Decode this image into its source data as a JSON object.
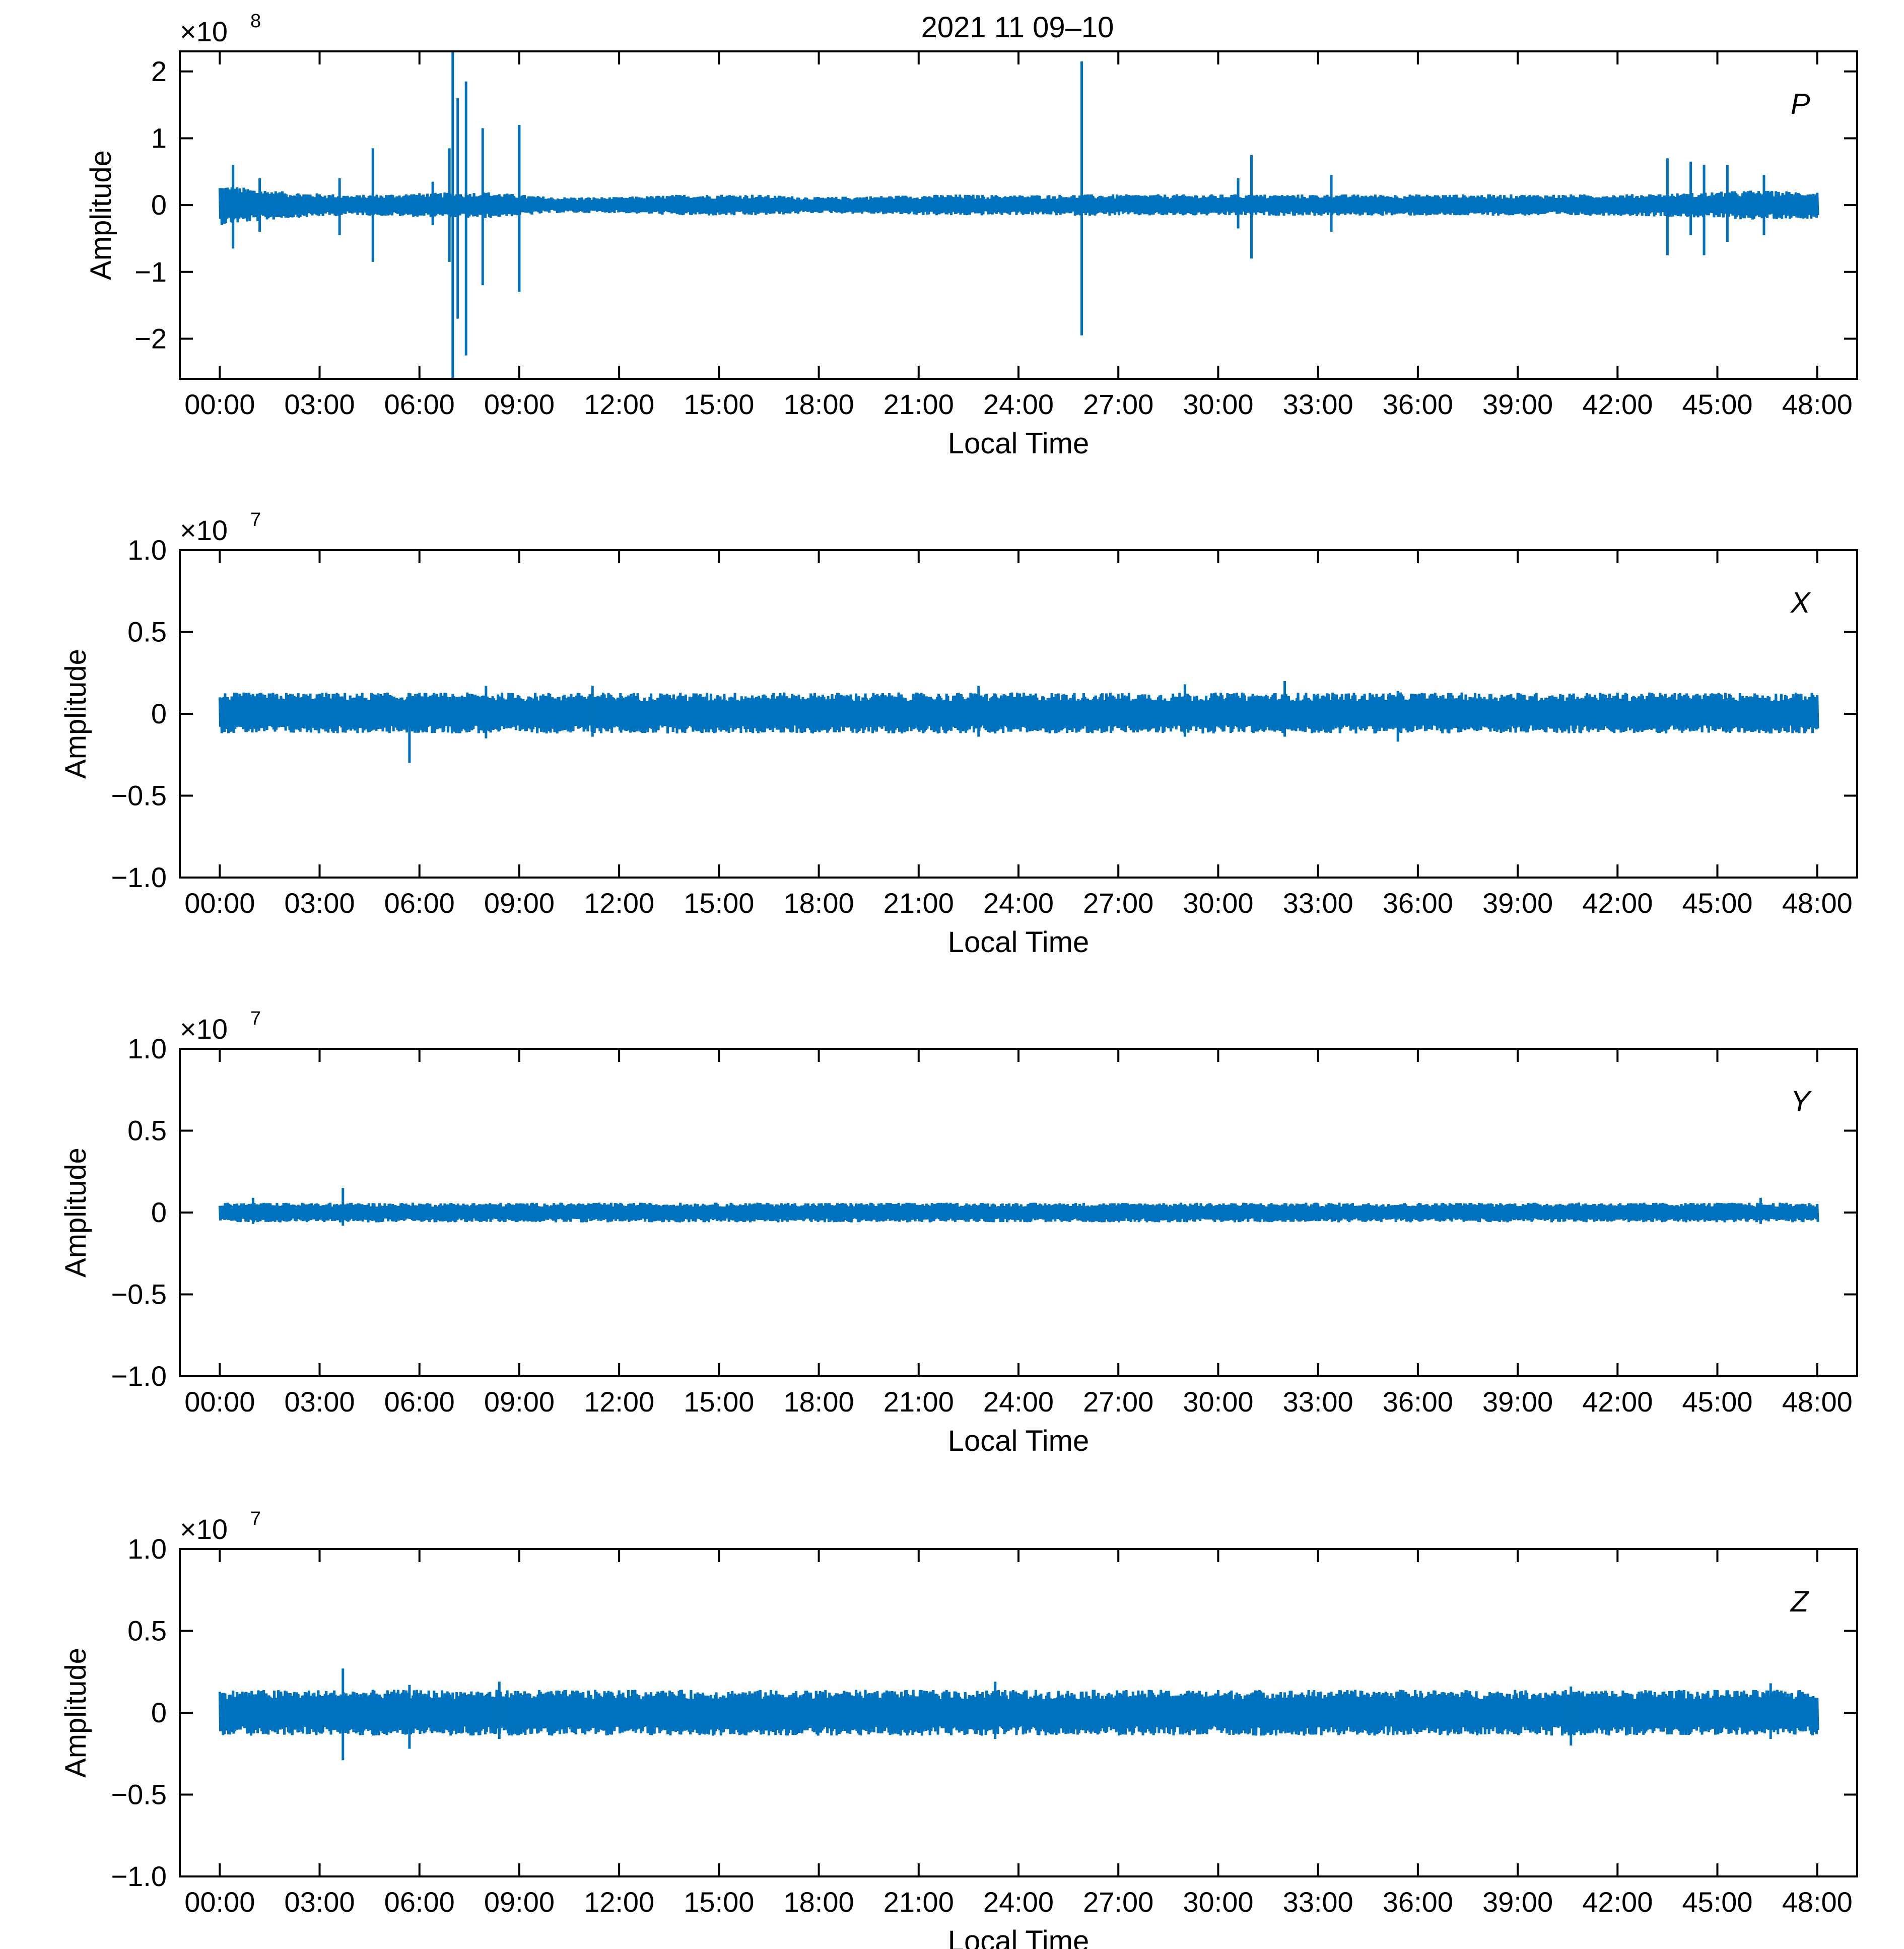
{
  "figure": {
    "title": "2021 11 09–10"
  },
  "chart_data": [
    {
      "type": "line",
      "panel_label": "P",
      "title": "",
      "xlabel": "Local Time",
      "ylabel": "Amplitude",
      "y_multiplier": "×10",
      "y_exponent": "8",
      "xlim": [
        -1.2,
        49.2
      ],
      "ylim": [
        -2.6,
        2.3
      ],
      "x_ticks": [
        "00:00",
        "03:00",
        "06:00",
        "09:00",
        "12:00",
        "15:00",
        "18:00",
        "21:00",
        "24:00",
        "27:00",
        "30:00",
        "33:00",
        "36:00",
        "39:00",
        "42:00",
        "45:00",
        "48:00"
      ],
      "y_ticks": [
        {
          "value": 2,
          "label": "2"
        },
        {
          "value": 1,
          "label": "1"
        },
        {
          "value": 0,
          "label": "0"
        },
        {
          "value": -1,
          "label": "−1"
        },
        {
          "value": -2,
          "label": "−2"
        }
      ],
      "grid": false,
      "series": [
        {
          "color": "#0072BD",
          "x_hours": [
            0,
            2,
            4,
            6,
            8,
            10,
            12,
            14,
            16,
            18,
            20,
            22,
            24,
            26,
            28,
            30,
            32,
            34,
            36,
            38,
            40,
            42,
            44,
            46,
            48
          ],
          "envelope_upper": [
            0.3,
            0.2,
            0.15,
            0.18,
            0.2,
            0.12,
            0.12,
            0.16,
            0.16,
            0.12,
            0.14,
            0.16,
            0.15,
            0.16,
            0.16,
            0.16,
            0.16,
            0.16,
            0.16,
            0.16,
            0.16,
            0.16,
            0.18,
            0.22,
            0.2
          ],
          "envelope_lower": [
            -0.3,
            -0.2,
            -0.15,
            -0.18,
            -0.2,
            -0.12,
            -0.12,
            -0.16,
            -0.16,
            -0.12,
            -0.14,
            -0.16,
            -0.15,
            -0.16,
            -0.16,
            -0.16,
            -0.16,
            -0.16,
            -0.16,
            -0.16,
            -0.16,
            -0.16,
            -0.18,
            -0.22,
            -0.2
          ],
          "spikes": [
            {
              "x": 0.4,
              "max": 0.6,
              "min": -0.65
            },
            {
              "x": 1.2,
              "max": 0.4,
              "min": -0.4
            },
            {
              "x": 3.6,
              "max": 0.4,
              "min": -0.45
            },
            {
              "x": 4.6,
              "max": 0.85,
              "min": -0.85
            },
            {
              "x": 6.4,
              "max": 0.35,
              "min": -0.3
            },
            {
              "x": 6.9,
              "max": 0.85,
              "min": -0.85
            },
            {
              "x": 7.0,
              "max": 2.3,
              "min": -2.6
            },
            {
              "x": 7.15,
              "max": 1.6,
              "min": -1.7
            },
            {
              "x": 7.4,
              "max": 1.85,
              "min": -2.25
            },
            {
              "x": 7.9,
              "max": 1.15,
              "min": -1.2
            },
            {
              "x": 9.0,
              "max": 1.2,
              "min": -1.3
            },
            {
              "x": 25.9,
              "max": 2.15,
              "min": -1.95
            },
            {
              "x": 30.6,
              "max": 0.4,
              "min": -0.35
            },
            {
              "x": 31.0,
              "max": 0.75,
              "min": -0.8
            },
            {
              "x": 33.4,
              "max": 0.45,
              "min": -0.4
            },
            {
              "x": 43.5,
              "max": 0.7,
              "min": -0.75
            },
            {
              "x": 44.2,
              "max": 0.65,
              "min": -0.45
            },
            {
              "x": 44.6,
              "max": 0.6,
              "min": -0.75
            },
            {
              "x": 45.3,
              "max": 0.6,
              "min": -0.55
            },
            {
              "x": 46.4,
              "max": 0.45,
              "min": -0.45
            }
          ]
        }
      ]
    },
    {
      "type": "line",
      "panel_label": "X",
      "title": "",
      "xlabel": "Local Time",
      "ylabel": "Amplitude",
      "y_multiplier": "×10",
      "y_exponent": "7",
      "xlim": [
        -1.2,
        49.2
      ],
      "ylim": [
        -1.0,
        1.0
      ],
      "x_ticks": [
        "00:00",
        "03:00",
        "06:00",
        "09:00",
        "12:00",
        "15:00",
        "18:00",
        "21:00",
        "24:00",
        "27:00",
        "30:00",
        "33:00",
        "36:00",
        "39:00",
        "42:00",
        "45:00",
        "48:00"
      ],
      "y_ticks": [
        {
          "value": 1.0,
          "label": "1.0"
        },
        {
          "value": 0.5,
          "label": "0.5"
        },
        {
          "value": 0,
          "label": "0"
        },
        {
          "value": -0.5,
          "label": "−0.5"
        },
        {
          "value": -1.0,
          "label": "−1.0"
        }
      ],
      "grid": false,
      "series": [
        {
          "color": "#0072BD",
          "x_hours": [
            0,
            4,
            8,
            12,
            16,
            20,
            24,
            28,
            32,
            36,
            40,
            44,
            48
          ],
          "envelope_upper": [
            0.13,
            0.13,
            0.13,
            0.13,
            0.13,
            0.13,
            0.13,
            0.13,
            0.13,
            0.13,
            0.13,
            0.13,
            0.13
          ],
          "envelope_lower": [
            -0.12,
            -0.12,
            -0.12,
            -0.12,
            -0.12,
            -0.12,
            -0.12,
            -0.12,
            -0.12,
            -0.12,
            -0.12,
            -0.12,
            -0.12
          ],
          "spikes": [
            {
              "x": 5.7,
              "max": 0.1,
              "min": -0.3
            },
            {
              "x": 8.0,
              "max": 0.17,
              "min": -0.15
            },
            {
              "x": 11.2,
              "max": 0.17,
              "min": -0.14
            },
            {
              "x": 22.8,
              "max": 0.17,
              "min": -0.14
            },
            {
              "x": 29.0,
              "max": 0.18,
              "min": -0.14
            },
            {
              "x": 32.0,
              "max": 0.2,
              "min": -0.14
            },
            {
              "x": 35.4,
              "max": 0.14,
              "min": -0.17
            }
          ]
        }
      ]
    },
    {
      "type": "line",
      "panel_label": "Y",
      "title": "",
      "xlabel": "Local Time",
      "ylabel": "Amplitude",
      "y_multiplier": "×10",
      "y_exponent": "7",
      "xlim": [
        -1.2,
        49.2
      ],
      "ylim": [
        -1.0,
        1.0
      ],
      "x_ticks": [
        "00:00",
        "03:00",
        "06:00",
        "09:00",
        "12:00",
        "15:00",
        "18:00",
        "21:00",
        "24:00",
        "27:00",
        "30:00",
        "33:00",
        "36:00",
        "39:00",
        "42:00",
        "45:00",
        "48:00"
      ],
      "y_ticks": [
        {
          "value": 1.0,
          "label": "1.0"
        },
        {
          "value": 0.5,
          "label": "0.5"
        },
        {
          "value": 0,
          "label": "0"
        },
        {
          "value": -0.5,
          "label": "−0.5"
        },
        {
          "value": -1.0,
          "label": "−1.0"
        }
      ],
      "grid": false,
      "series": [
        {
          "color": "#0072BD",
          "x_hours": [
            0,
            4,
            8,
            12,
            16,
            20,
            24,
            28,
            32,
            36,
            40,
            44,
            48
          ],
          "envelope_upper": [
            0.06,
            0.06,
            0.06,
            0.06,
            0.06,
            0.06,
            0.06,
            0.06,
            0.06,
            0.06,
            0.06,
            0.06,
            0.06
          ],
          "envelope_lower": [
            -0.06,
            -0.06,
            -0.06,
            -0.06,
            -0.06,
            -0.06,
            -0.06,
            -0.06,
            -0.06,
            -0.06,
            -0.06,
            -0.06,
            -0.06
          ],
          "spikes": [
            {
              "x": 3.7,
              "max": 0.15,
              "min": -0.08
            },
            {
              "x": 1.0,
              "max": 0.09,
              "min": -0.07
            },
            {
              "x": 46.3,
              "max": 0.09,
              "min": -0.07
            }
          ]
        }
      ]
    },
    {
      "type": "line",
      "panel_label": "Z",
      "title": "",
      "xlabel": "Local Time",
      "ylabel": "Amplitude",
      "y_multiplier": "×10",
      "y_exponent": "7",
      "xlim": [
        -1.2,
        49.2
      ],
      "ylim": [
        -1.0,
        1.0
      ],
      "x_ticks": [
        "00:00",
        "03:00",
        "06:00",
        "09:00",
        "12:00",
        "15:00",
        "18:00",
        "21:00",
        "24:00",
        "27:00",
        "30:00",
        "33:00",
        "36:00",
        "39:00",
        "42:00",
        "45:00",
        "48:00"
      ],
      "y_ticks": [
        {
          "value": 1.0,
          "label": "1.0"
        },
        {
          "value": 0.5,
          "label": "0.5"
        },
        {
          "value": 0,
          "label": "0"
        },
        {
          "value": -0.5,
          "label": "−0.5"
        },
        {
          "value": -1.0,
          "label": "−1.0"
        }
      ],
      "grid": false,
      "series": [
        {
          "color": "#0072BD",
          "x_hours": [
            0,
            4,
            8,
            12,
            16,
            20,
            24,
            28,
            32,
            36,
            40,
            44,
            48
          ],
          "envelope_upper": [
            0.14,
            0.14,
            0.14,
            0.14,
            0.14,
            0.14,
            0.14,
            0.14,
            0.14,
            0.14,
            0.14,
            0.14,
            0.14
          ],
          "envelope_lower": [
            -0.14,
            -0.14,
            -0.14,
            -0.14,
            -0.14,
            -0.14,
            -0.14,
            -0.14,
            -0.14,
            -0.14,
            -0.14,
            -0.14,
            -0.14
          ],
          "spikes": [
            {
              "x": 3.7,
              "max": 0.27,
              "min": -0.29
            },
            {
              "x": 5.7,
              "max": 0.17,
              "min": -0.22
            },
            {
              "x": 8.4,
              "max": 0.19,
              "min": -0.16
            },
            {
              "x": 23.3,
              "max": 0.19,
              "min": -0.16
            },
            {
              "x": 40.6,
              "max": 0.16,
              "min": -0.2
            },
            {
              "x": 46.6,
              "max": 0.18,
              "min": -0.16
            }
          ]
        }
      ]
    }
  ]
}
